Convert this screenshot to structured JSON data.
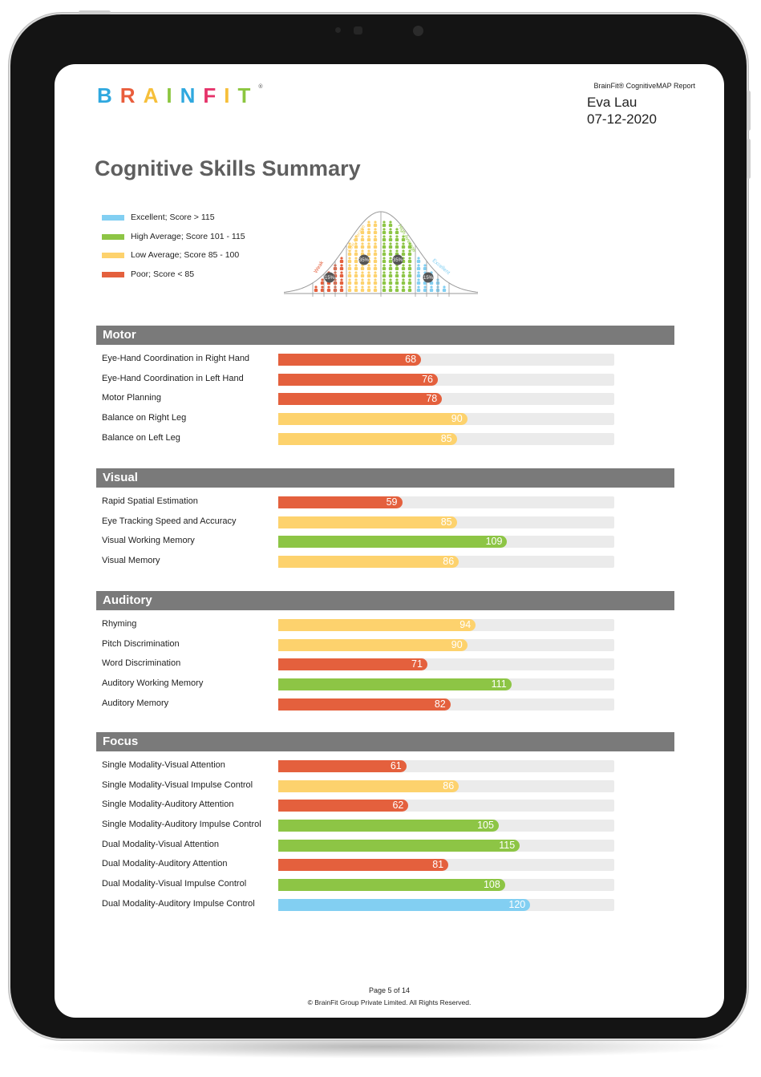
{
  "brand": {
    "letters": [
      {
        "ch": "B",
        "color": "#2FA8DF"
      },
      {
        "ch": "R",
        "color": "#E95D3C"
      },
      {
        "ch": "A",
        "color": "#F6BF3A"
      },
      {
        "ch": "I",
        "color": "#8CC63F"
      },
      {
        "ch": "N",
        "color": "#2FA8DF"
      },
      {
        "ch": "F",
        "color": "#E6336A"
      },
      {
        "ch": "I",
        "color": "#F6BF3A"
      },
      {
        "ch": "T",
        "color": "#8CC63F"
      }
    ],
    "reg_mark": "®"
  },
  "report": {
    "title": "BrainFit® CognitiveMAP Report",
    "name": "Eva Lau",
    "date": "07-12-2020"
  },
  "page_title": "Cognitive Skills Summary",
  "colors": {
    "excellent": "#82CFF2",
    "high_average": "#8DC545",
    "low_average": "#FDD26D",
    "poor": "#E4603D",
    "header_bg": "#7A7A7A",
    "track": "#EBEBEB"
  },
  "legend": [
    {
      "label": "Excellent; Score > 115",
      "color": "#82CFF2"
    },
    {
      "label": "High Average; Score 101 - 115",
      "color": "#8DC545"
    },
    {
      "label": "Low Average; Score 85 - 100",
      "color": "#FDD26D"
    },
    {
      "label": "Poor; Score < 85",
      "color": "#E4603D"
    }
  ],
  "bell_curve": {
    "labels": [
      "Weak",
      "Low Average",
      "High Average",
      "Excellent"
    ],
    "percents": [
      "15%",
      "35%",
      "35%",
      "15%"
    ]
  },
  "scale": {
    "max": 160
  },
  "sections": [
    {
      "title": "Motor",
      "items": [
        {
          "label": "Eye-Hand Coordination in Right Hand",
          "score": 68
        },
        {
          "label": "Eye-Hand Coordination in Left Hand",
          "score": 76
        },
        {
          "label": "Motor Planning",
          "score": 78
        },
        {
          "label": "Balance on Right Leg",
          "score": 90
        },
        {
          "label": "Balance on Left Leg",
          "score": 85
        }
      ]
    },
    {
      "title": "Visual",
      "items": [
        {
          "label": "Rapid Spatial Estimation",
          "score": 59
        },
        {
          "label": "Eye Tracking Speed and Accuracy",
          "score": 85
        },
        {
          "label": "Visual Working Memory",
          "score": 109
        },
        {
          "label": "Visual Memory",
          "score": 86
        }
      ]
    },
    {
      "title": "Auditory",
      "items": [
        {
          "label": "Rhyming",
          "score": 94
        },
        {
          "label": "Pitch Discrimination",
          "score": 90
        },
        {
          "label": "Word Discrimination",
          "score": 71
        },
        {
          "label": "Auditory Working Memory",
          "score": 111
        },
        {
          "label": "Auditory Memory",
          "score": 82
        }
      ]
    },
    {
      "title": "Focus",
      "items": [
        {
          "label": "Single Modality-Visual Attention",
          "score": 61
        },
        {
          "label": "Single Modality-Visual Impulse Control",
          "score": 86
        },
        {
          "label": "Single Modality-Auditory Attention",
          "score": 62
        },
        {
          "label": "Single Modality-Auditory Impulse Control",
          "score": 105
        },
        {
          "label": "Dual Modality-Visual Attention",
          "score": 115
        },
        {
          "label": "Dual Modality-Auditory Attention",
          "score": 81
        },
        {
          "label": "Dual Modality-Visual Impulse Control",
          "score": 108
        },
        {
          "label": "Dual Modality-Auditory Impulse Control",
          "score": 120
        }
      ]
    }
  ],
  "footer": {
    "page": "Page 5 of 14",
    "copyright": "© BrainFit Group Private Limited. All Rights Reserved."
  }
}
